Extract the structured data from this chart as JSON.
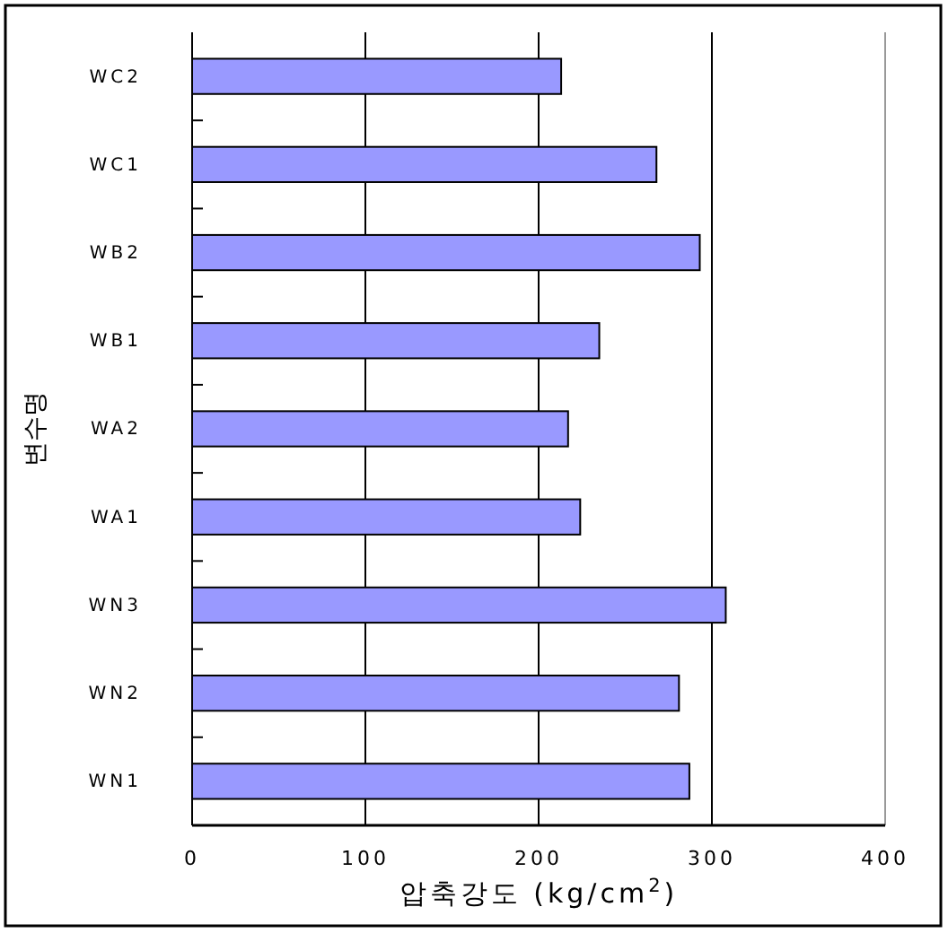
{
  "chart_data": {
    "type": "bar",
    "orientation": "horizontal",
    "xlabel": "압축강도 (kg/cm$^{2}$)",
    "ylabel": "변수명",
    "categories": [
      "WC2",
      "WC1",
      "WB2",
      "WB1",
      "WA2",
      "WA1",
      "WN3",
      "WN2",
      "WN1"
    ],
    "values": [
      213,
      268,
      293,
      235,
      217,
      224,
      308,
      281,
      287
    ],
    "color": "#9999ff",
    "xlim": [
      0,
      400
    ],
    "xticks": [
      0,
      100,
      200,
      300,
      400
    ],
    "grid": "x"
  }
}
